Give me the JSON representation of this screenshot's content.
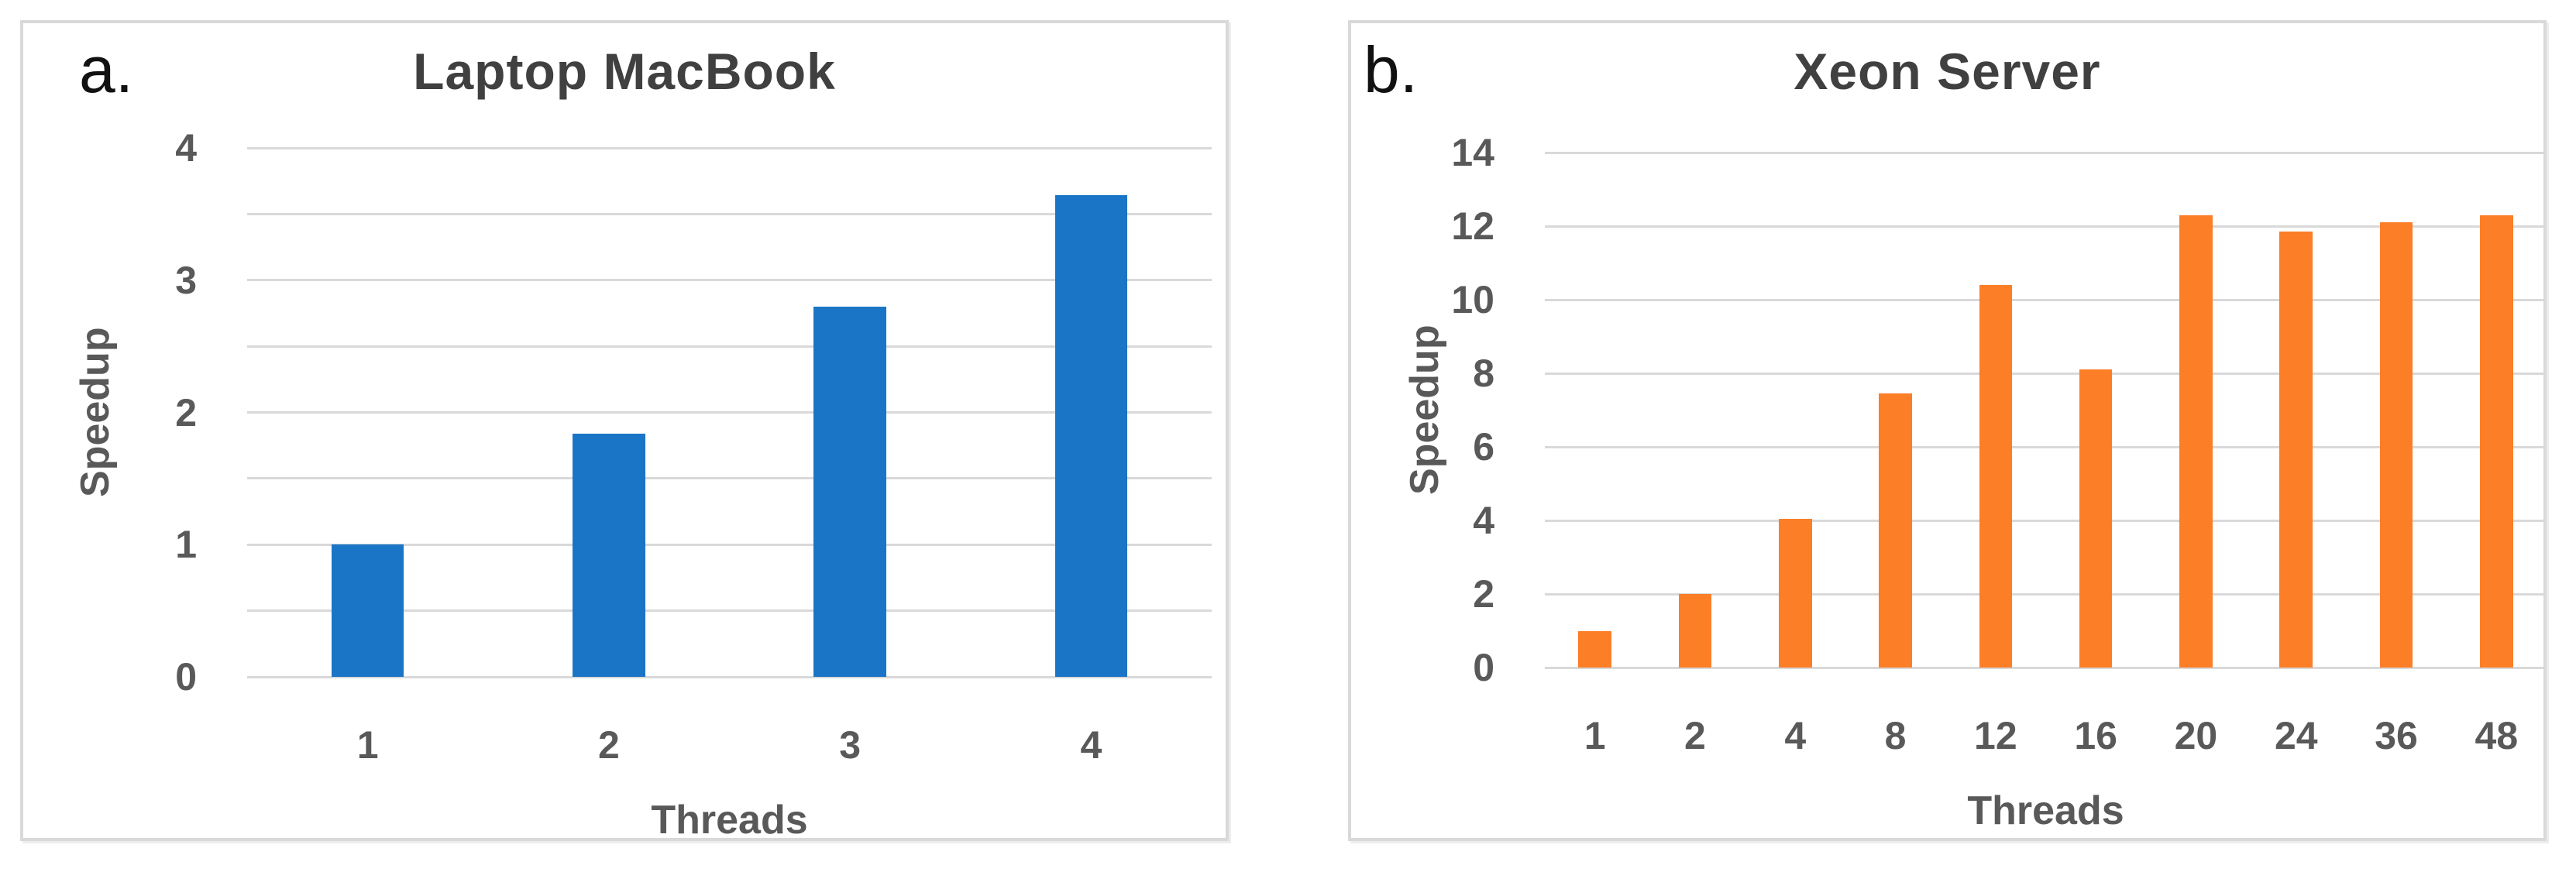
{
  "figure_labels": {
    "panel_a": "a.",
    "panel_b": "b."
  },
  "colors": {
    "bar_blue": "#1B75C6",
    "bar_orange": "#FC7E27",
    "gridline": "#D9D9D9",
    "panel_border": "#D9D9D9",
    "tick_text": "#595959",
    "title_text": "#404040",
    "corner_text": "#111111"
  },
  "chart_data": [
    {
      "type": "bar",
      "panel_label": "a.",
      "title": "Laptop MacBook",
      "xlabel": "Threads",
      "ylabel": "Speedup",
      "categories": [
        "1",
        "2",
        "3",
        "4"
      ],
      "values": [
        1.0,
        1.84,
        2.8,
        3.64
      ],
      "ylim": [
        0,
        4
      ],
      "yticks": [
        0,
        1,
        2,
        3,
        4
      ],
      "gridline_step": 0.5,
      "bar_color": "#1B75C6",
      "grid": true,
      "legend": "none",
      "bar_width_frac": 0.3
    },
    {
      "type": "bar",
      "panel_label": "b.",
      "title": "Xeon Server",
      "xlabel": "Threads",
      "ylabel": "Speedup",
      "categories": [
        "1",
        "2",
        "4",
        "8",
        "12",
        "16",
        "20",
        "24",
        "36",
        "48"
      ],
      "values": [
        1.0,
        2.0,
        4.05,
        7.45,
        10.4,
        8.1,
        12.3,
        11.85,
        12.1,
        12.3
      ],
      "ylim": [
        0,
        14
      ],
      "yticks": [
        0,
        2,
        4,
        6,
        8,
        10,
        12,
        14
      ],
      "gridline_step": 2,
      "bar_color": "#FC7E27",
      "grid": true,
      "legend": "none",
      "bar_width_frac": 0.33
    }
  ]
}
